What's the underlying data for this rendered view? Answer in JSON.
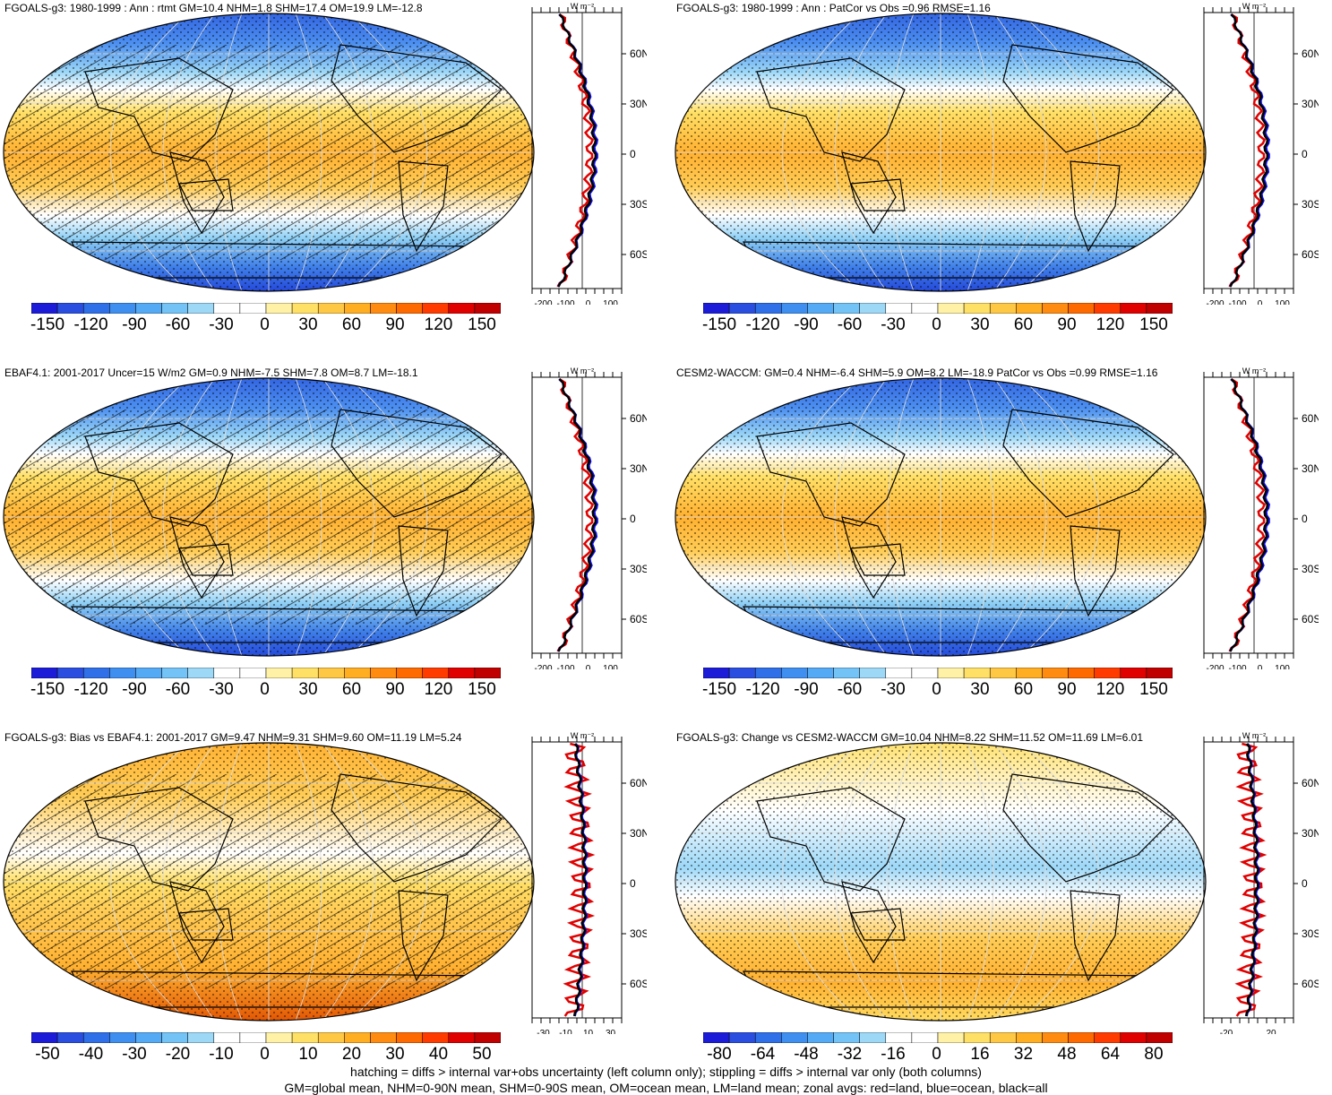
{
  "panels": [
    {
      "title": "FGOALS-g3: 1980-1999 : Ann : rtmt GM=10.4 NHM=1.8 SHM=17.4 OM=19.9 LM=-12.8",
      "cbar_labels": [
        "-150",
        "-120",
        "-90",
        "-60",
        "-30",
        "0",
        "30",
        "60",
        "90",
        "120",
        "150"
      ],
      "zonal_x_ticks": [
        "-200",
        "-100",
        "0",
        "100"
      ],
      "zonal_y_ticks": [
        "60N",
        "30N",
        "0",
        "30S",
        "60S"
      ],
      "zonal_units": "W m⁻²",
      "hatched": true
    },
    {
      "title": "FGOALS-g3: 1980-1999 : Ann : PatCor vs Obs =0.96 RMSE=1.16",
      "cbar_labels": [
        "-150",
        "-120",
        "-90",
        "-60",
        "-30",
        "0",
        "30",
        "60",
        "90",
        "120",
        "150"
      ],
      "zonal_x_ticks": [
        "-200",
        "-100",
        "0",
        "100"
      ],
      "zonal_y_ticks": [
        "60N",
        "30N",
        "0",
        "30S",
        "60S"
      ],
      "zonal_units": "W m⁻²",
      "hatched": false
    },
    {
      "title": "EBAF4.1: 2001-2017 Uncer=15 W/m2 GM=0.9 NHM=-7.5 SHM=7.8 OM=8.7 LM=-18.1",
      "cbar_labels": [
        "-150",
        "-120",
        "-90",
        "-60",
        "-30",
        "0",
        "30",
        "60",
        "90",
        "120",
        "150"
      ],
      "zonal_x_ticks": [
        "-200",
        "-100",
        "0",
        "100"
      ],
      "zonal_y_ticks": [
        "60N",
        "30N",
        "0",
        "30S",
        "60S"
      ],
      "zonal_units": "W m⁻²",
      "hatched": true
    },
    {
      "title": "CESM2-WACCM: GM=0.4 NHM=-6.4 SHM=5.9 OM=8.2 LM=-18.9 PatCor vs Obs =0.99 RMSE=1.16",
      "cbar_labels": [
        "-150",
        "-120",
        "-90",
        "-60",
        "-30",
        "0",
        "30",
        "60",
        "90",
        "120",
        "150"
      ],
      "zonal_x_ticks": [
        "-200",
        "-100",
        "0",
        "100"
      ],
      "zonal_y_ticks": [
        "60N",
        "30N",
        "0",
        "30S",
        "60S"
      ],
      "zonal_units": "W m⁻²",
      "hatched": false
    },
    {
      "title": "FGOALS-g3: Bias vs EBAF4.1: 2001-2017 GM=9.47 NHM=9.31 SHM=9.60 OM=11.19 LM=5.24",
      "cbar_labels": [
        "-50",
        "-40",
        "-30",
        "-20",
        "-10",
        "0",
        "10",
        "20",
        "30",
        "40",
        "50"
      ],
      "zonal_x_ticks": [
        "-30",
        "-10",
        "10",
        "30"
      ],
      "zonal_y_ticks": [
        "60N",
        "30N",
        "0",
        "30S",
        "60S"
      ],
      "zonal_units": "W m⁻²",
      "hatched": true
    },
    {
      "title": "FGOALS-g3: Change vs CESM2-WACCM GM=10.04 NHM=8.22 SHM=11.52 OM=11.69 LM=6.01",
      "cbar_labels": [
        "-80",
        "-64",
        "-48",
        "-32",
        "-16",
        "0",
        "16",
        "32",
        "48",
        "64",
        "80"
      ],
      "zonal_x_ticks": [
        "-20",
        "20"
      ],
      "zonal_y_ticks": [
        "60N",
        "30N",
        "0",
        "30S",
        "60S"
      ],
      "zonal_units": "W m⁻²",
      "hatched": false
    }
  ],
  "footer": {
    "line1": "hatching = diffs > internal var+obs uncertainty (left column only); stippling = diffs > internal var only (both columns)",
    "line2": "GM=global mean, NHM=0-90N mean, SHM=0-90S mean, OM=ocean mean, LM=land mean; zonal avgs: red=land, blue=ocean, black=all"
  },
  "legend_colors": {
    "land": "#e00000",
    "ocean": "#1010e0",
    "all": "#000000"
  }
}
